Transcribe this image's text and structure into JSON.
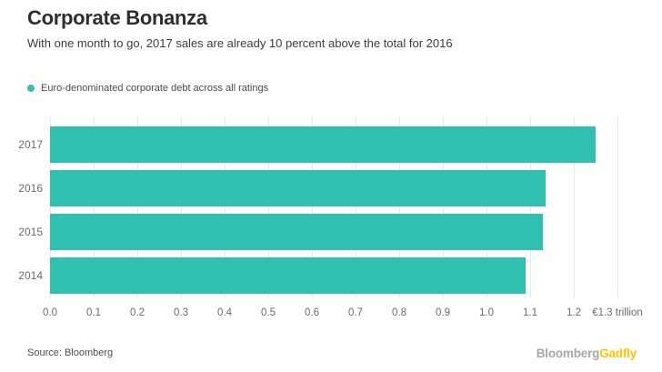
{
  "header": {
    "title": "Corporate Bonanza",
    "subtitle": "With one month to go, 2017 sales are already 10 percent above the total for 2016"
  },
  "legend": {
    "label": "Euro-denominated corporate debt across all ratings"
  },
  "chart_data": {
    "type": "bar",
    "orientation": "horizontal",
    "title": "Corporate Bonanza",
    "subtitle": "With one month to go, 2017 sales are already 10 percent above the total for 2016",
    "series_name": "Euro-denominated corporate debt across all ratings",
    "categories": [
      "2017",
      "2016",
      "2015",
      "2014"
    ],
    "values": [
      1.25,
      1.135,
      1.13,
      1.09
    ],
    "unit": "trillion EUR",
    "xlim": [
      0.0,
      1.3
    ],
    "x_tick_labels": [
      "0.0",
      "0.1",
      "0.2",
      "0.3",
      "0.4",
      "0.5",
      "0.6",
      "0.7",
      "0.8",
      "0.9",
      "1.0",
      "1.1",
      "1.2",
      "€1.3 trillion"
    ],
    "x_tick_values": [
      0.0,
      0.1,
      0.2,
      0.3,
      0.4,
      0.5,
      0.6,
      0.7,
      0.8,
      0.9,
      1.0,
      1.1,
      1.2,
      1.3
    ],
    "grid": "vertical",
    "legend_position": "top-left",
    "bar_color": "#2fc0b0"
  },
  "colors": {
    "accent_teal": "#2fc0b0",
    "gridline": "#e8e8e8",
    "title_text": "#2e2e2e",
    "axis_text": "#6b6b6b",
    "brand_gray": "#a8a8a8",
    "brand_yellow": "#fdc500"
  },
  "footer": {
    "source": "Source: Bloomberg",
    "brand": {
      "bloomberg": "Bloomberg",
      "gadfly": "Gadfly"
    }
  }
}
